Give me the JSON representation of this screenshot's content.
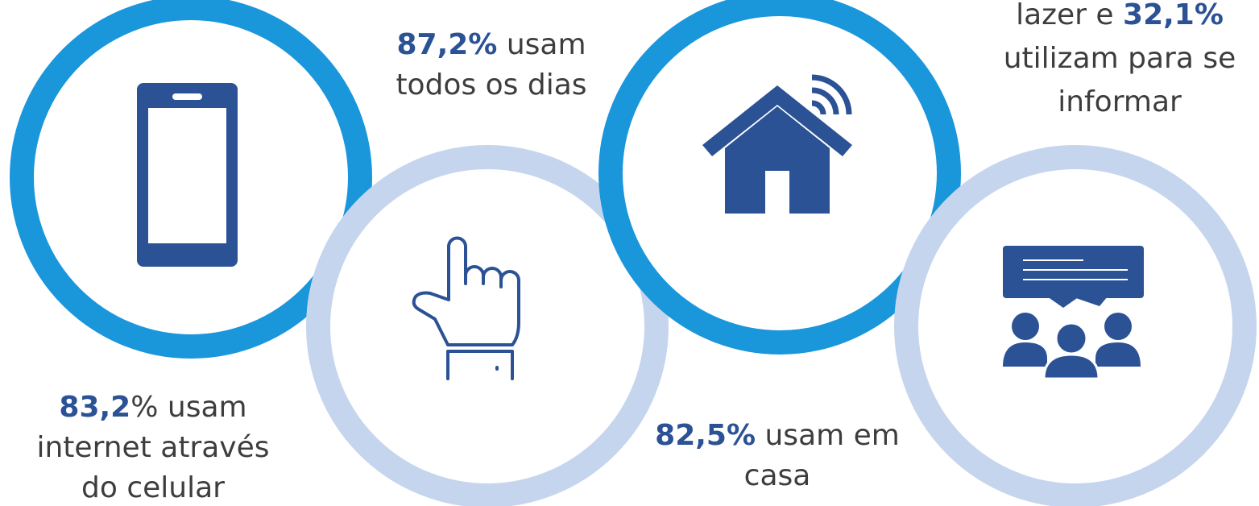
{
  "items": [
    {
      "lines": [
        [
          {
            "text": "83,2",
            "bold": true
          },
          {
            "text": "% usam",
            "bold": false
          }
        ],
        [
          {
            "text": "internet através",
            "bold": false
          }
        ],
        [
          {
            "text": "do celular",
            "bold": false
          }
        ]
      ]
    },
    {
      "lines": [
        [
          {
            "text": "87,2%",
            "bold": true
          },
          {
            "text": " usam",
            "bold": false
          }
        ],
        [
          {
            "text": "todos os dias",
            "bold": false
          }
        ]
      ]
    },
    {
      "lines": [
        [
          {
            "text": "82,5%",
            "bold": true
          },
          {
            "text": " usam em",
            "bold": false
          }
        ],
        [
          {
            "text": "casa",
            "bold": false
          }
        ]
      ]
    },
    {
      "lines": [
        [
          {
            "text": "lazer e ",
            "bold": false
          },
          {
            "text": "32,1%",
            "bold": true
          }
        ],
        [
          {
            "text": "utilizam para se",
            "bold": false
          }
        ],
        [
          {
            "text": "informar",
            "bold": false
          }
        ]
      ]
    }
  ]
}
